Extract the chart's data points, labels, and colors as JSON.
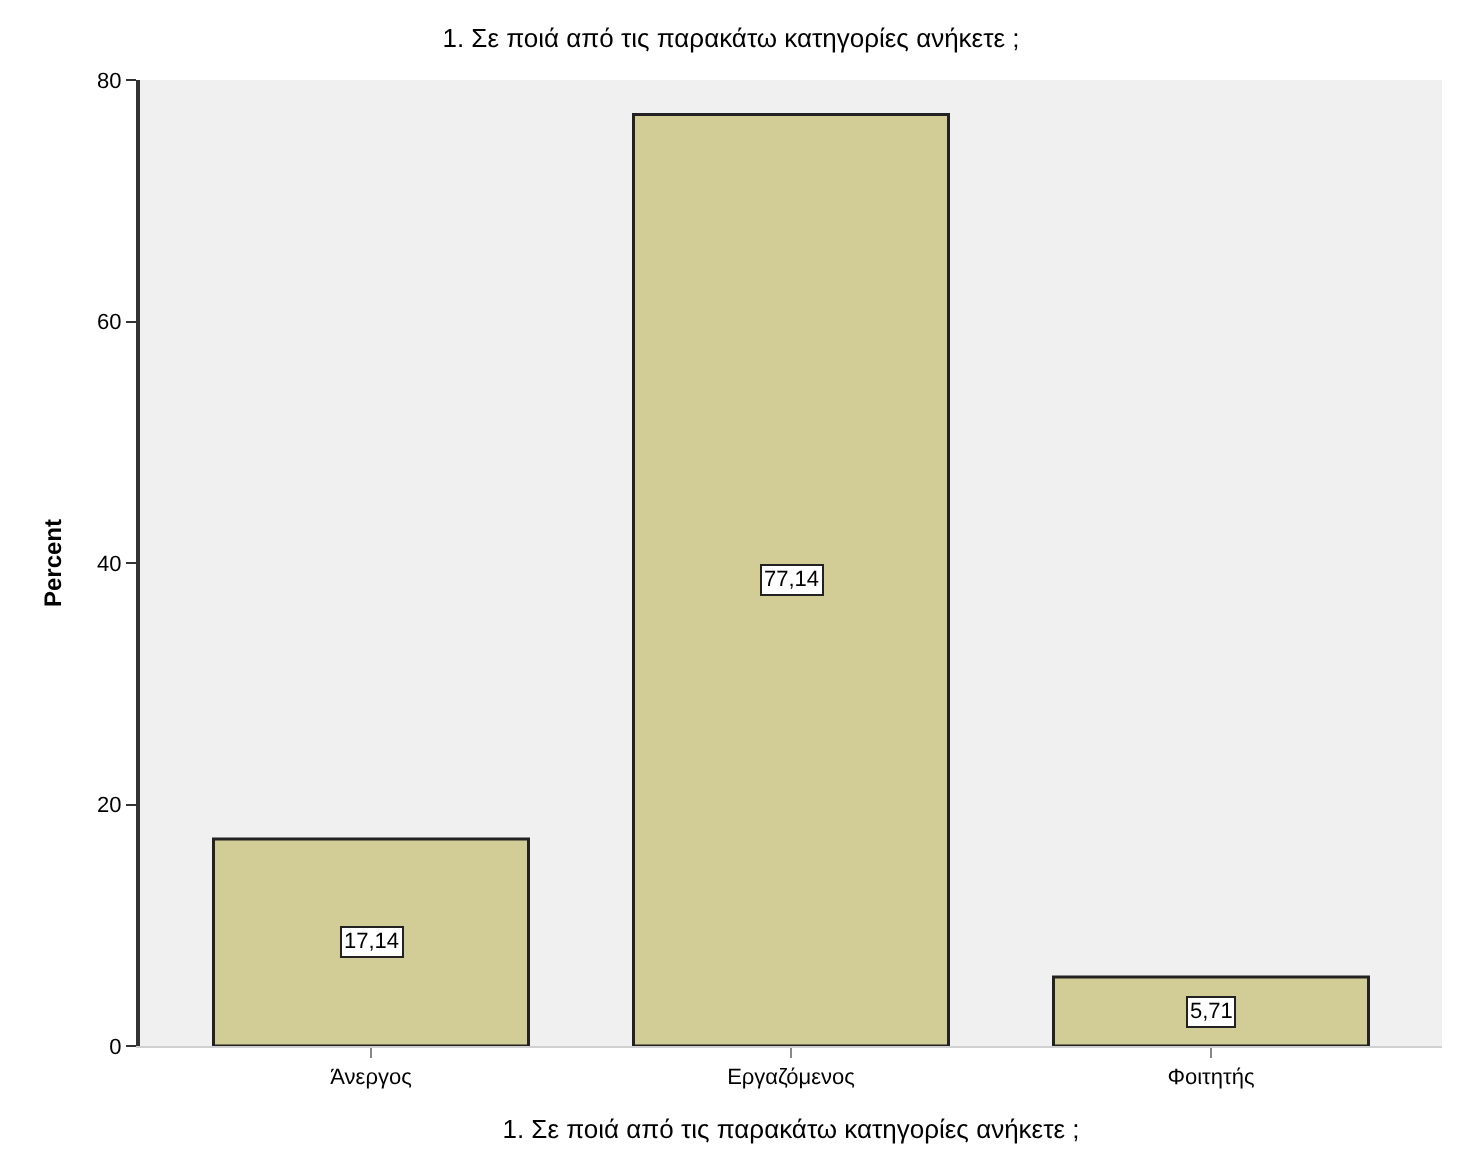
{
  "chart_data": {
    "type": "bar",
    "title": "1. Σε ποιά από τις παρακάτω κατηγορίες ανήκετε ;",
    "xlabel": "1. Σε ποιά από τις παρακάτω κατηγορίες ανήκετε ;",
    "ylabel": "Percent",
    "categories": [
      "Άνεργος",
      "Εργαζόμενος",
      "Φοιτητής"
    ],
    "values": [
      17.14,
      77.14,
      5.71
    ],
    "value_labels": [
      "17,14",
      "77,14",
      "5,71"
    ],
    "color": "#d2cc96",
    "ylim": [
      0,
      80
    ],
    "yticks": [
      0,
      20,
      40,
      60,
      80
    ],
    "grid": false,
    "legend": false
  }
}
